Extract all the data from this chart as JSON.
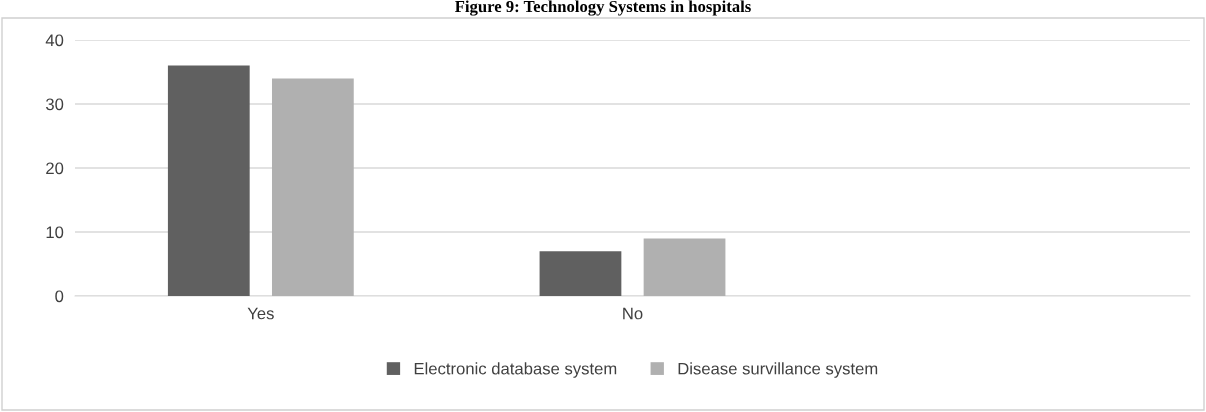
{
  "chart_data": {
    "type": "bar",
    "title": "Figure 9: Technology Systems in hospitals",
    "categories": [
      "Yes",
      "No",
      null
    ],
    "series": [
      {
        "name": "Electronic database system",
        "color": "#606060",
        "values": [
          36,
          7,
          null
        ]
      },
      {
        "name": "Disease survillance system",
        "color": "#b0b0b0",
        "values": [
          34,
          9,
          null
        ]
      }
    ],
    "ylim": [
      0,
      40
    ],
    "yticks": [
      0,
      10,
      20,
      30,
      40
    ],
    "grid": "y",
    "legend": "bottom"
  }
}
